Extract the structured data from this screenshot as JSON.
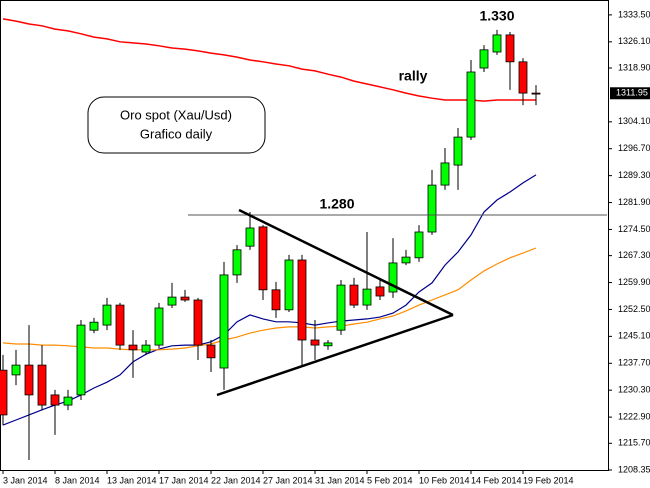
{
  "chart_data": {
    "type": "candlestick",
    "categories": [
      "3 Jan 2014",
      null,
      null,
      null,
      "8 Jan 2014",
      null,
      null,
      null,
      "13 Jan 2014",
      null,
      null,
      null,
      "17 Jan 2014",
      null,
      null,
      null,
      "22 Jan 2014",
      null,
      null,
      null,
      "27 Jan 2014",
      null,
      null,
      null,
      "31 Jan 2014",
      null,
      null,
      null,
      "5 Feb 2014",
      null,
      null,
      null,
      "10 Feb 2014",
      null,
      null,
      null,
      "14 Feb 2014",
      null,
      null,
      null,
      "19 Feb 2014",
      null
    ],
    "open": [
      1235.8,
      1234.5,
      1237.2,
      1237.2,
      1229.0,
      1226.2,
      1229.0,
      1246.8,
      1248.2,
      1253.7,
      1242.7,
      1240.8,
      1242.7,
      1253.7,
      1255.9,
      1255.1,
      1242.7,
      1236.4,
      1262.0,
      1269.9,
      1275.2,
      1257.9,
      1252.4,
      1266.1,
      1244.1,
      1242.5,
      1246.8,
      1259.2,
      1253.7,
      1258.7,
      1257.3,
      1265.3,
      1266.7,
      1273.8,
      1286.7,
      1292.2,
      1299.9,
      1318.9,
      1323.3,
      1328.0,
      1320.6,
      1312.0
    ],
    "high": [
      1240.0,
      1241.4,
      1248.2,
      1242.7,
      1230.4,
      1230.4,
      1249.6,
      1250.2,
      1255.7,
      1254.3,
      1246.8,
      1244.1,
      1254.3,
      1259.8,
      1257.9,
      1255.7,
      1244.1,
      1265.6,
      1270.2,
      1279.3,
      1275.7,
      1260.1,
      1267.5,
      1267.5,
      1249.6,
      1244.1,
      1260.6,
      1261.2,
      1273.8,
      1260.6,
      1272.1,
      1268.9,
      1275.7,
      1290.9,
      1296.9,
      1302.4,
      1321.1,
      1325.2,
      1329.4,
      1328.8,
      1321.6,
      1314.2
    ],
    "low": [
      1220.7,
      1231.7,
      1211.1,
      1224.8,
      1218.0,
      1224.8,
      1227.6,
      1246.0,
      1246.8,
      1241.4,
      1233.7,
      1240.0,
      1241.9,
      1252.9,
      1254.6,
      1238.6,
      1235.3,
      1230.4,
      1259.8,
      1268.9,
      1255.1,
      1250.2,
      1251.8,
      1237.2,
      1238.6,
      1241.4,
      1245.5,
      1252.9,
      1252.4,
      1255.1,
      1255.7,
      1264.7,
      1265.6,
      1273.0,
      1285.4,
      1285.4,
      1299.1,
      1317.8,
      1322.5,
      1312.9,
      1308.7,
      1308.7
    ],
    "close": [
      1223.5,
      1237.2,
      1229.0,
      1226.2,
      1226.2,
      1228.4,
      1248.2,
      1249.0,
      1253.7,
      1242.7,
      1241.4,
      1242.7,
      1252.9,
      1255.9,
      1255.1,
      1242.7,
      1239.2,
      1262.0,
      1268.9,
      1274.9,
      1257.9,
      1252.4,
      1266.1,
      1244.1,
      1242.7,
      1243.3,
      1259.2,
      1253.7,
      1258.1,
      1256.2,
      1265.3,
      1266.9,
      1273.8,
      1286.7,
      1292.8,
      1299.9,
      1317.8,
      1323.9,
      1328.0,
      1320.6,
      1312.0,
      1311.95
    ],
    "up_color": "#00ff00",
    "down_color": "#ff0000",
    "overlays": [
      {
        "color": "#ff0000",
        "values": [
          1332.4,
          1331.8,
          1331.0,
          1330.5,
          1329.6,
          1329.1,
          1328.3,
          1327.4,
          1326.9,
          1326.1,
          1325.8,
          1325.5,
          1325.0,
          1324.4,
          1324.1,
          1323.6,
          1323.0,
          1322.5,
          1321.9,
          1321.1,
          1320.6,
          1320.0,
          1319.5,
          1318.6,
          1318.1,
          1317.2,
          1316.4,
          1315.3,
          1314.5,
          1313.7,
          1312.9,
          1312.0,
          1311.2,
          1310.6,
          1310.1,
          1310.1,
          1310.1,
          1309.8,
          1310.1,
          1310.1,
          1310.1,
          1310.1
        ]
      },
      {
        "color": "#00008b",
        "values": [
          1220.7,
          1222.1,
          1223.5,
          1224.9,
          1226.2,
          1227.3,
          1229.0,
          1230.9,
          1232.5,
          1234.5,
          1238.1,
          1240.2,
          1241.6,
          1242.5,
          1242.7,
          1242.7,
          1243.6,
          1245.5,
          1249.1,
          1251.0,
          1249.9,
          1249.1,
          1249.1,
          1248.8,
          1248.2,
          1248.8,
          1249.3,
          1249.6,
          1249.9,
          1250.4,
          1251.5,
          1253.7,
          1257.3,
          1259.8,
          1264.7,
          1268.3,
          1273.0,
          1279.3,
          1282.6,
          1284.8,
          1287.3,
          1289.5
        ]
      },
      {
        "color": "#ff8c00",
        "values": [
          1243.3,
          1243.0,
          1243.0,
          1242.7,
          1242.7,
          1242.5,
          1242.2,
          1241.9,
          1241.9,
          1241.6,
          1241.4,
          1241.4,
          1241.4,
          1241.6,
          1241.9,
          1242.5,
          1243.0,
          1244.1,
          1244.9,
          1246.0,
          1246.8,
          1247.4,
          1247.7,
          1247.7,
          1247.4,
          1247.7,
          1247.9,
          1248.5,
          1249.0,
          1249.9,
          1250.7,
          1252.1,
          1253.7,
          1255.1,
          1256.5,
          1257.9,
          1260.6,
          1263.1,
          1265.0,
          1266.7,
          1268.0,
          1269.4
        ]
      }
    ],
    "ylim": [
      1208.35,
      1337.6
    ],
    "yticks": [
      {
        "value": 1333.5,
        "label": "1333.50"
      },
      {
        "value": 1326.1,
        "label": "1326.10"
      },
      {
        "value": 1318.9,
        "label": "1318.90"
      },
      {
        "value": 1304.1,
        "label": "1304.10"
      },
      {
        "value": 1296.7,
        "label": "1296.70"
      },
      {
        "value": 1289.3,
        "label": "1289.30"
      },
      {
        "value": 1281.9,
        "label": "1281.90"
      },
      {
        "value": 1274.5,
        "label": "1274.50"
      },
      {
        "value": 1267.3,
        "label": "1267.30"
      },
      {
        "value": 1259.9,
        "label": "1259.90"
      },
      {
        "value": 1252.5,
        "label": "1252.50"
      },
      {
        "value": 1245.1,
        "label": "1245.10"
      },
      {
        "value": 1237.7,
        "label": "1237.70"
      },
      {
        "value": 1230.3,
        "label": "1230.30"
      },
      {
        "value": 1222.9,
        "label": "1222.90"
      },
      {
        "value": 1215.7,
        "label": "1215.70"
      },
      1208.35
    ],
    "last_price": 1311.95,
    "annotations": {
      "peak": "1.330",
      "rally": "rally",
      "resistance": "1.280",
      "box_line1": "Oro spot (Xau/Usd)",
      "box_line2": "Grafico daily"
    }
  }
}
